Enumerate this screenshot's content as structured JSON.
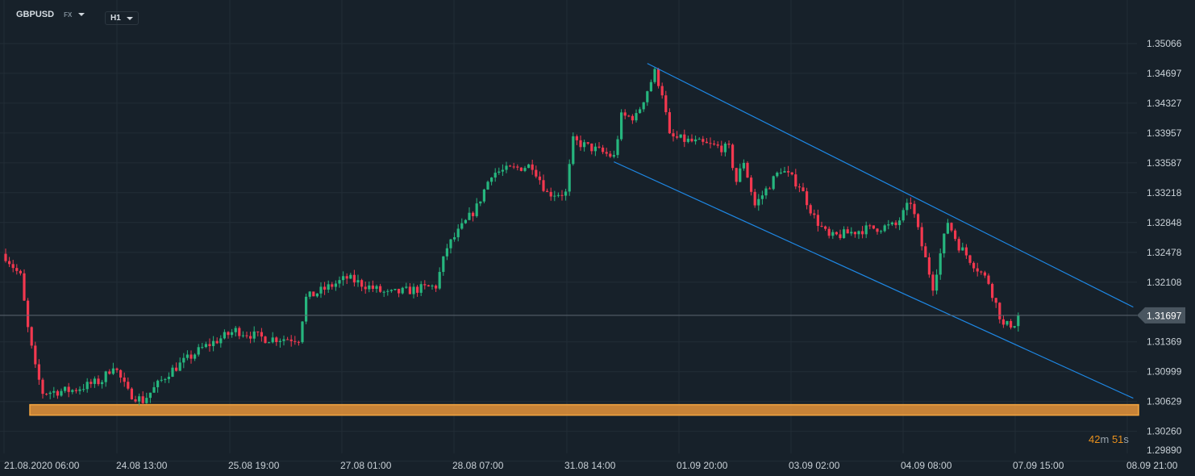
{
  "header": {
    "symbol": "GBPUSD",
    "market": "FX",
    "timeframe": "H1"
  },
  "timer": {
    "minutes": "42",
    "min_unit": "m",
    "seconds": "51",
    "sec_unit": "s"
  },
  "colors": {
    "up": "#26b67e",
    "down": "#f2384f",
    "channel": "#1e88e5",
    "zone": "#e8943a",
    "bg": "#17212a"
  },
  "chart_data": {
    "type": "candlestick",
    "title": "GBPUSD H1",
    "current_price": "1.31697",
    "ylim": [
      1.2989,
      1.35066
    ],
    "y_ticks": [
      "1.35066",
      "1.34697",
      "1.34327",
      "1.33957",
      "1.33587",
      "1.33218",
      "1.32848",
      "1.32478",
      "1.32108",
      "1.31369",
      "1.30999",
      "1.30629",
      "1.30260",
      "1.29890"
    ],
    "x_ticks": [
      "21.08.2020  06:00",
      "24.08  13:00",
      "25.08  19:00",
      "27.08  01:00",
      "28.08  07:00",
      "31.08  14:00",
      "01.09  20:00",
      "03.09  02:00",
      "04.09  08:00",
      "07.09  15:00",
      "08.09  21:00"
    ],
    "candle_count": 274,
    "close_path": [
      [
        0,
        1.3243
      ],
      [
        4,
        1.3218
      ],
      [
        6,
        1.3153
      ],
      [
        8,
        1.3104
      ],
      [
        10,
        1.3074
      ],
      [
        18,
        1.3077
      ],
      [
        26,
        1.3089
      ],
      [
        29,
        1.3109
      ],
      [
        33,
        1.3074
      ],
      [
        37,
        1.3064
      ],
      [
        44,
        1.3099
      ],
      [
        53,
        1.3129
      ],
      [
        62,
        1.3151
      ],
      [
        70,
        1.3141
      ],
      [
        79,
        1.3141
      ],
      [
        81,
        1.3191
      ],
      [
        92,
        1.3216
      ],
      [
        103,
        1.3196
      ],
      [
        116,
        1.3206
      ],
      [
        119,
        1.3254
      ],
      [
        127,
        1.3304
      ],
      [
        131,
        1.3346
      ],
      [
        142,
        1.3356
      ],
      [
        146,
        1.3321
      ],
      [
        151,
        1.3321
      ],
      [
        153,
        1.3386
      ],
      [
        164,
        1.3366
      ],
      [
        166,
        1.3416
      ],
      [
        170,
        1.3416
      ],
      [
        175,
        1.3471
      ],
      [
        177,
        1.3446
      ],
      [
        179,
        1.3391
      ],
      [
        189,
        1.3381
      ],
      [
        195,
        1.3376
      ],
      [
        197,
        1.3336
      ],
      [
        199,
        1.3361
      ],
      [
        202,
        1.3306
      ],
      [
        209,
        1.3351
      ],
      [
        214,
        1.3331
      ],
      [
        218,
        1.3291
      ],
      [
        222,
        1.3266
      ],
      [
        231,
        1.3276
      ],
      [
        240,
        1.3281
      ],
      [
        244,
        1.3311
      ],
      [
        247,
        1.3256
      ],
      [
        250,
        1.3206
      ],
      [
        254,
        1.3286
      ],
      [
        257,
        1.3256
      ],
      [
        265,
        1.3211
      ],
      [
        269,
        1.3156
      ],
      [
        272,
        1.316
      ],
      [
        273,
        1.31697
      ]
    ],
    "channel_upper": [
      [
        173,
        1.3482
      ],
      [
        304,
        1.318
      ]
    ],
    "channel_lower": [
      [
        164,
        1.336
      ],
      [
        304,
        1.3067
      ]
    ],
    "support_zone": [
      1.3046,
      1.3059
    ]
  }
}
